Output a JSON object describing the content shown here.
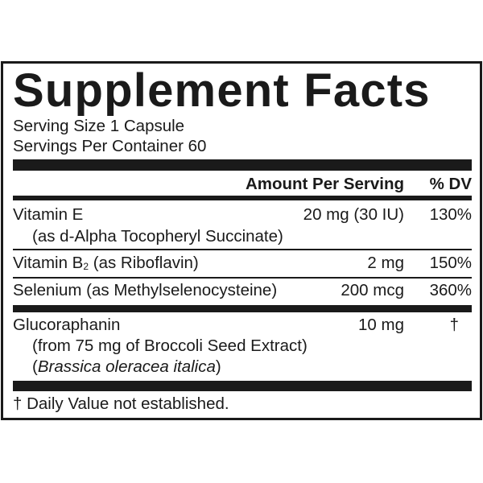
{
  "title": "Supplement Facts",
  "serving_size": "Serving Size 1 Capsule",
  "servings_per_container": "Servings Per Container 60",
  "header": {
    "amount": "Amount Per Serving",
    "dv": "% DV"
  },
  "rows": [
    {
      "name": "Vitamin E",
      "source": "(as d-Alpha Tocopheryl Succinate)",
      "amount": "20 mg (30 IU)",
      "dv": "130%"
    },
    {
      "name_prefix": "Vitamin B",
      "name_sub": "2",
      "name_suffix": " (as Riboflavin)",
      "amount": "2 mg",
      "dv": "150%"
    },
    {
      "name": "Selenium (as Methylselenocysteine)",
      "amount": "200 mcg",
      "dv": "360%"
    },
    {
      "name": "Glucoraphanin",
      "source": "(from 75 mg of Broccoli Seed Extract)",
      "latin_open": "(",
      "latin": "Brassica oleracea italica",
      "latin_close": ")",
      "amount": "10 mg",
      "dv": "†"
    }
  ],
  "footnote": "† Daily Value not established."
}
